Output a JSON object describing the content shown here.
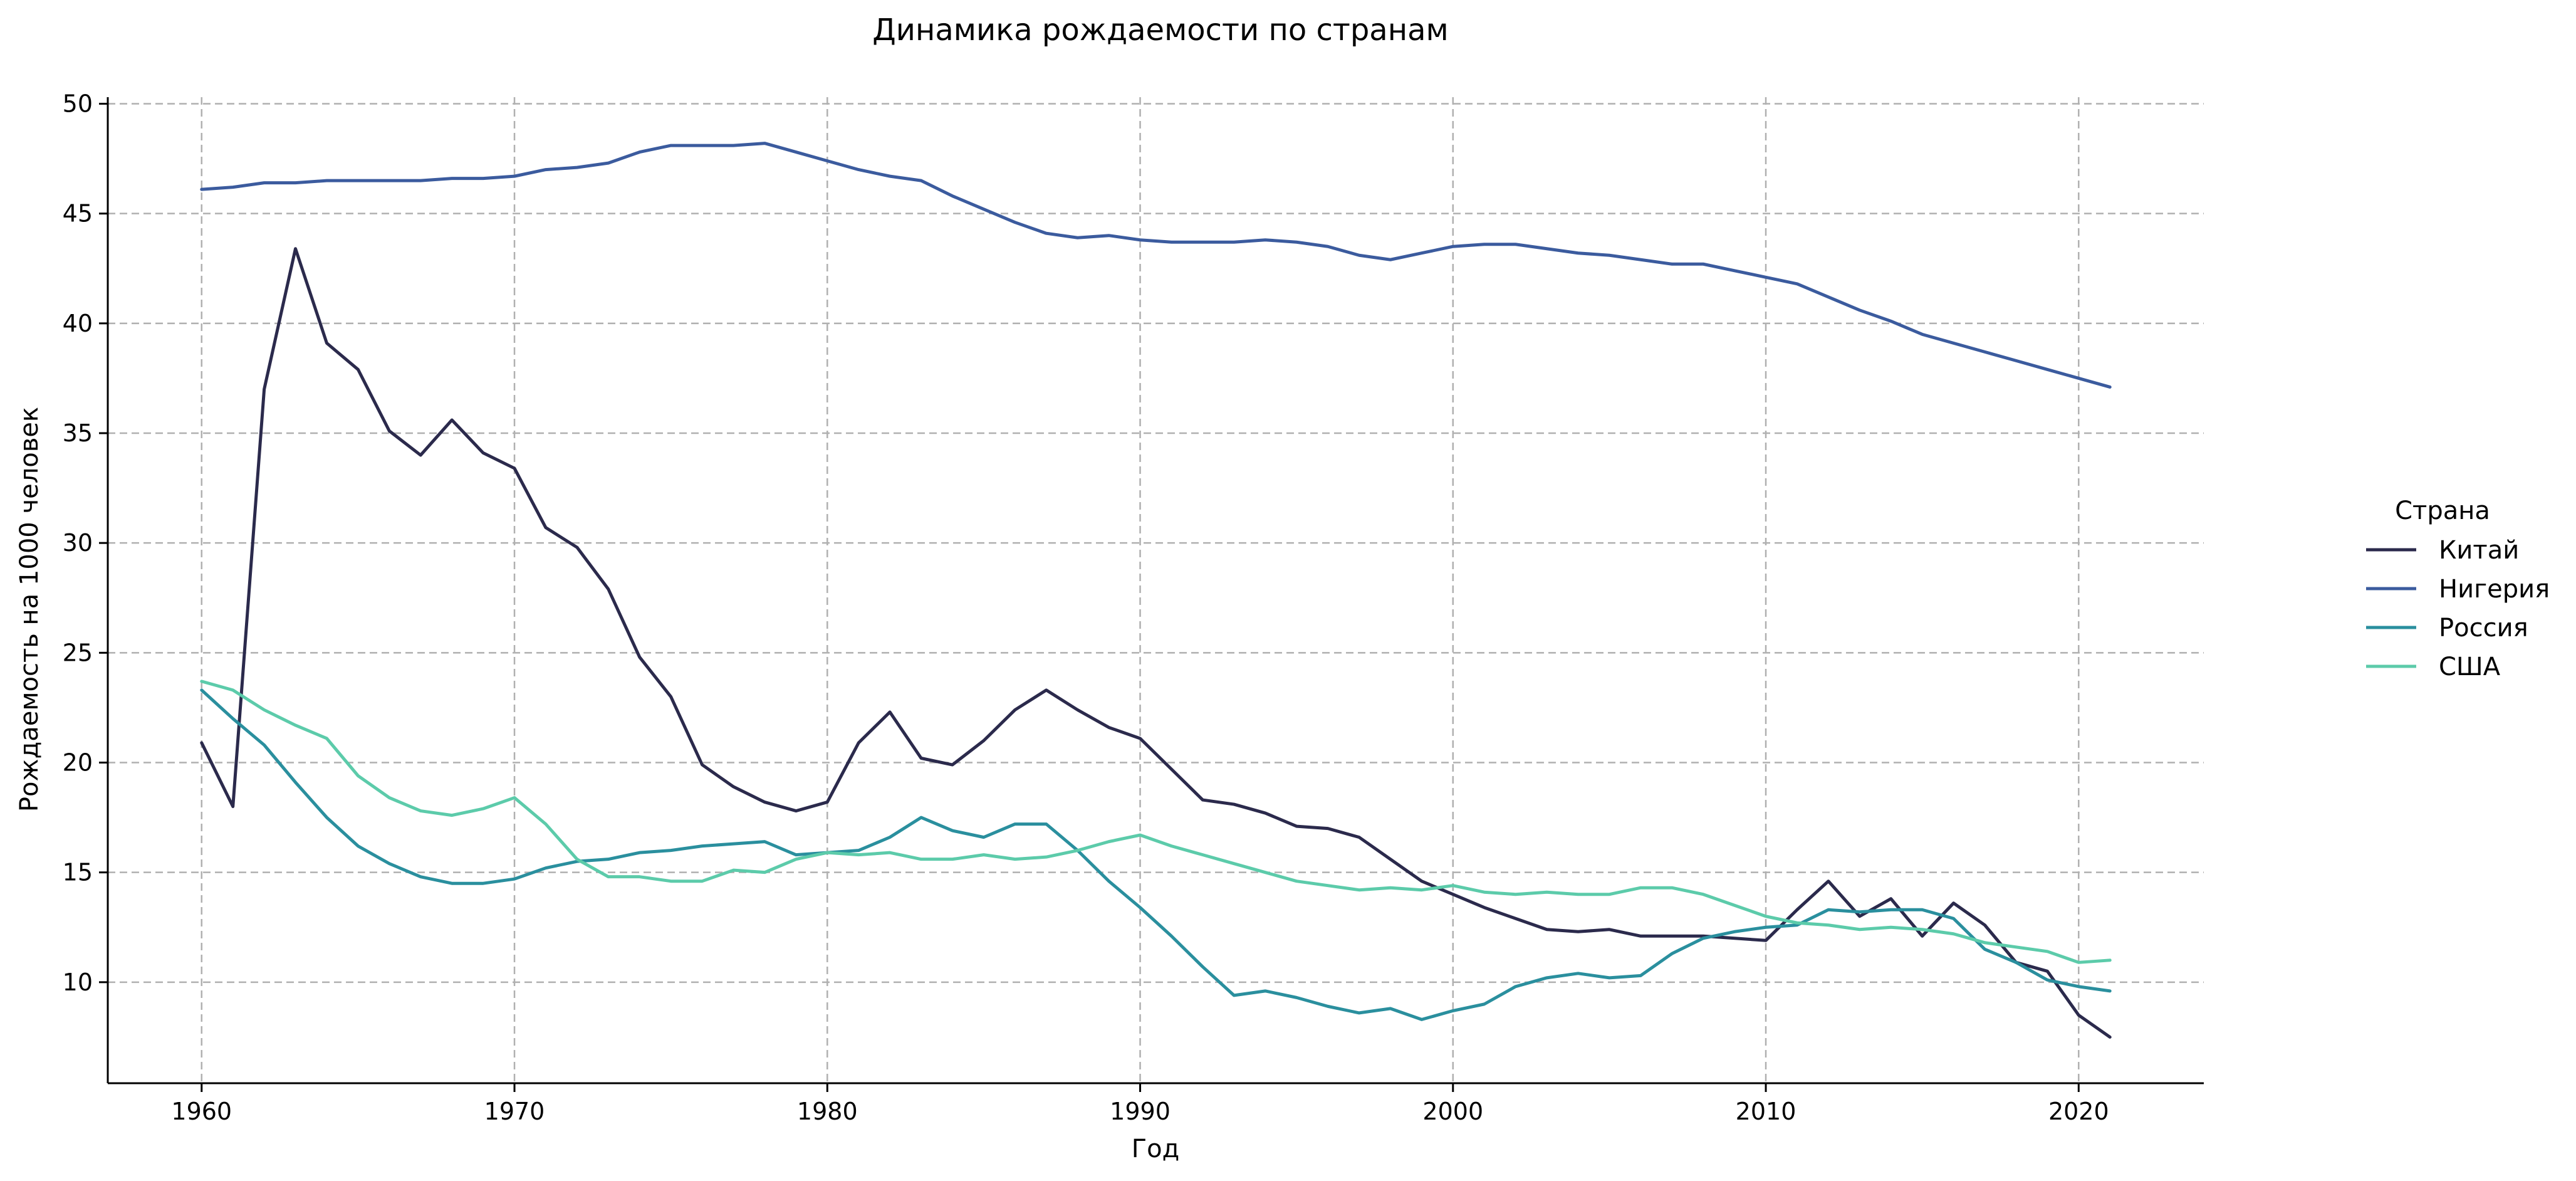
{
  "chart_data": {
    "type": "line",
    "title": "Динамика рождаемости по странам",
    "xlabel": "Год",
    "ylabel": "Рождаемость на 1000 человек",
    "xlim": [
      1957,
      2024
    ],
    "ylim": [
      5.4,
      50.3
    ],
    "x_ticks": [
      1960,
      1970,
      1980,
      1990,
      2000,
      2010,
      2020
    ],
    "y_ticks": [
      10,
      15,
      20,
      25,
      30,
      35,
      40,
      45,
      50
    ],
    "grid": true,
    "legend": {
      "title": "Страна",
      "position": "right"
    },
    "x": [
      1960,
      1961,
      1962,
      1963,
      1964,
      1965,
      1966,
      1967,
      1968,
      1969,
      1970,
      1971,
      1972,
      1973,
      1974,
      1975,
      1976,
      1977,
      1978,
      1979,
      1980,
      1981,
      1982,
      1983,
      1984,
      1985,
      1986,
      1987,
      1988,
      1989,
      1990,
      1991,
      1992,
      1993,
      1994,
      1995,
      1996,
      1997,
      1998,
      1999,
      2000,
      2001,
      2002,
      2003,
      2004,
      2005,
      2006,
      2007,
      2008,
      2009,
      2010,
      2011,
      2012,
      2013,
      2014,
      2015,
      2016,
      2017,
      2018,
      2019,
      2020,
      2021
    ],
    "series": [
      {
        "name": "Китай",
        "color": "#2b2a4c",
        "values": [
          20.9,
          18.0,
          37.0,
          43.4,
          39.1,
          37.9,
          35.1,
          34.0,
          35.6,
          34.1,
          33.4,
          30.7,
          29.8,
          27.9,
          24.8,
          23.0,
          19.9,
          18.9,
          18.2,
          17.8,
          18.2,
          20.9,
          22.3,
          20.2,
          19.9,
          21.0,
          22.4,
          23.3,
          22.4,
          21.6,
          21.1,
          19.7,
          18.3,
          18.1,
          17.7,
          17.1,
          17.0,
          16.6,
          15.6,
          14.6,
          14.0,
          13.4,
          12.9,
          12.4,
          12.3,
          12.4,
          12.1,
          12.1,
          12.1,
          12.0,
          11.9,
          13.3,
          14.6,
          13.0,
          13.8,
          12.1,
          13.6,
          12.6,
          10.9,
          10.5,
          8.5,
          7.5
        ]
      },
      {
        "name": "Нигерия",
        "color": "#3b5b9e",
        "values": [
          46.1,
          46.2,
          46.4,
          46.4,
          46.5,
          46.5,
          46.5,
          46.5,
          46.6,
          46.6,
          46.7,
          47.0,
          47.1,
          47.3,
          47.8,
          48.1,
          48.1,
          48.1,
          48.2,
          47.8,
          47.4,
          47.0,
          46.7,
          46.5,
          45.8,
          45.2,
          44.6,
          44.1,
          43.9,
          44.0,
          43.8,
          43.7,
          43.7,
          43.7,
          43.8,
          43.7,
          43.5,
          43.1,
          42.9,
          43.2,
          43.5,
          43.6,
          43.6,
          43.4,
          43.2,
          43.1,
          42.9,
          42.7,
          42.7,
          42.4,
          42.1,
          41.8,
          41.2,
          40.6,
          40.1,
          39.5,
          39.1,
          38.7,
          38.3,
          37.9,
          37.5,
          37.1
        ]
      },
      {
        "name": "Россия",
        "color": "#2a8f9e",
        "values": [
          23.3,
          22.0,
          20.8,
          19.1,
          17.5,
          16.2,
          15.4,
          14.8,
          14.5,
          14.5,
          14.7,
          15.2,
          15.5,
          15.6,
          15.9,
          16.0,
          16.2,
          16.3,
          16.4,
          15.8,
          15.9,
          16.0,
          16.6,
          17.5,
          16.9,
          16.6,
          17.2,
          17.2,
          16.0,
          14.6,
          13.4,
          12.1,
          10.7,
          9.4,
          9.6,
          9.3,
          8.9,
          8.6,
          8.8,
          8.3,
          8.7,
          9.0,
          9.8,
          10.2,
          10.4,
          10.2,
          10.3,
          11.3,
          12.0,
          12.3,
          12.5,
          12.6,
          13.3,
          13.2,
          13.3,
          13.3,
          12.9,
          11.5,
          10.9,
          10.1,
          9.8,
          9.6
        ]
      },
      {
        "name": "США",
        "color": "#5ccbaa",
        "values": [
          23.7,
          23.3,
          22.4,
          21.7,
          21.1,
          19.4,
          18.4,
          17.8,
          17.6,
          17.9,
          18.4,
          17.2,
          15.6,
          14.8,
          14.8,
          14.6,
          14.6,
          15.1,
          15.0,
          15.6,
          15.9,
          15.8,
          15.9,
          15.6,
          15.6,
          15.8,
          15.6,
          15.7,
          16.0,
          16.4,
          16.7,
          16.2,
          15.8,
          15.4,
          15.0,
          14.6,
          14.4,
          14.2,
          14.3,
          14.2,
          14.4,
          14.1,
          14.0,
          14.1,
          14.0,
          14.0,
          14.3,
          14.3,
          14.0,
          13.5,
          13.0,
          12.7,
          12.6,
          12.4,
          12.5,
          12.4,
          12.2,
          11.8,
          11.6,
          11.4,
          10.9,
          11.0
        ]
      }
    ]
  }
}
